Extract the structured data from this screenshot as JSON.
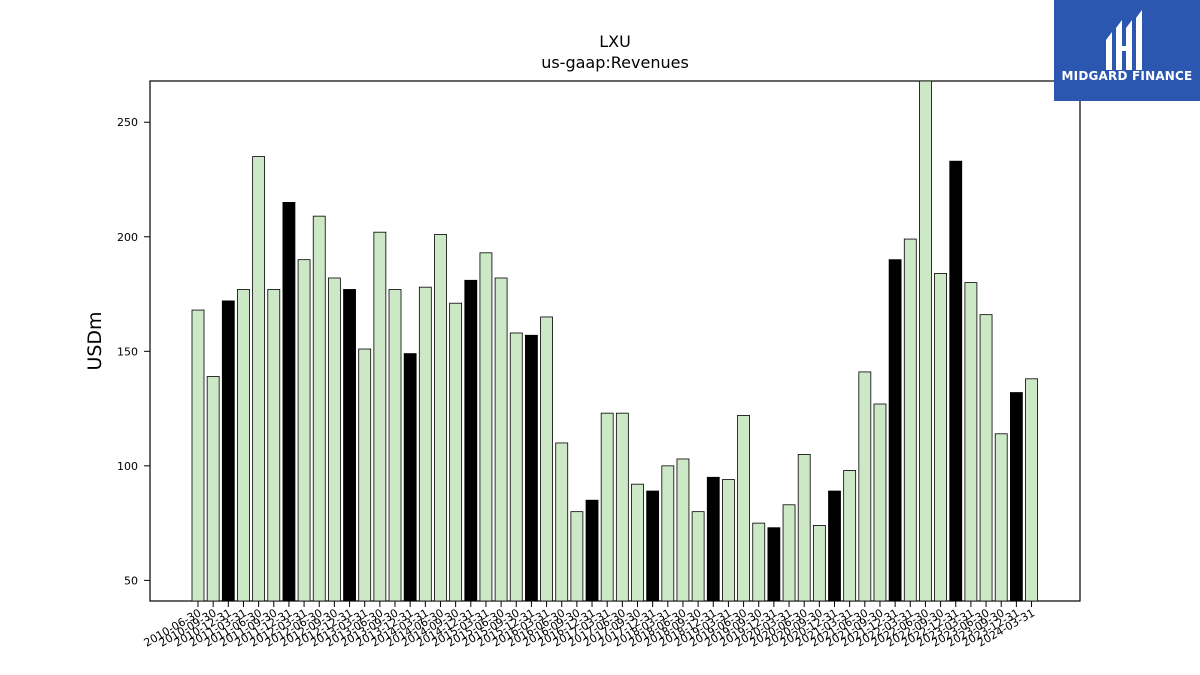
{
  "chart_data": {
    "type": "bar",
    "title": "LXU",
    "subtitle": "us-gaap:Revenues",
    "xlabel": "",
    "ylabel": "USDm",
    "ylim": [
      41,
      268
    ],
    "yticks": [
      50,
      100,
      150,
      200,
      250
    ],
    "grid": false,
    "colors": {
      "default": "#cde8c6",
      "highlight": "#000000",
      "edge": "#000000"
    },
    "categories": [
      "2010-06-30",
      "2010-09-30",
      "2010-12-31",
      "2011-03-31",
      "2011-06-30",
      "2011-09-30",
      "2011-12-31",
      "2012-03-31",
      "2012-06-30",
      "2012-09-30",
      "2012-12-31",
      "2013-03-31",
      "2013-06-30",
      "2013-09-30",
      "2013-12-31",
      "2014-03-31",
      "2014-06-30",
      "2014-09-30",
      "2014-12-31",
      "2015-03-31",
      "2015-06-30",
      "2015-09-30",
      "2015-12-31",
      "2016-03-31",
      "2016-06-30",
      "2016-09-30",
      "2016-12-31",
      "2017-03-31",
      "2017-06-30",
      "2017-09-30",
      "2017-12-31",
      "2018-03-31",
      "2018-06-30",
      "2018-09-30",
      "2018-12-31",
      "2019-03-31",
      "2019-06-30",
      "2019-09-30",
      "2019-12-31",
      "2020-03-31",
      "2020-06-30",
      "2020-09-30",
      "2020-12-31",
      "2021-03-31",
      "2021-06-30",
      "2021-09-30",
      "2021-12-31",
      "2022-03-31",
      "2022-06-30",
      "2022-09-30",
      "2022-12-31",
      "2023-03-31",
      "2023-06-30",
      "2023-09-30",
      "2023-12-31",
      "2024-03-31"
    ],
    "values": [
      168,
      139,
      172,
      177,
      235,
      177,
      215,
      190,
      209,
      182,
      177,
      151,
      202,
      177,
      149,
      178,
      201,
      171,
      181,
      193,
      182,
      158,
      157,
      165,
      110,
      80,
      85,
      123,
      123,
      92,
      89,
      100,
      103,
      80,
      95,
      94,
      122,
      75,
      73,
      83,
      105,
      74,
      89,
      98,
      141,
      127,
      190,
      199,
      268,
      184,
      233,
      180,
      166,
      114,
      132,
      138
    ],
    "highlight": [
      false,
      false,
      true,
      false,
      false,
      false,
      true,
      false,
      false,
      false,
      true,
      false,
      false,
      false,
      true,
      false,
      false,
      false,
      true,
      false,
      false,
      false,
      true,
      false,
      false,
      false,
      true,
      false,
      false,
      false,
      true,
      false,
      false,
      false,
      true,
      false,
      false,
      false,
      true,
      false,
      false,
      false,
      true,
      false,
      false,
      false,
      true,
      false,
      false,
      false,
      true,
      false,
      false,
      false,
      true,
      false
    ]
  },
  "logo": {
    "text": "MIDGARD FINANCE"
  }
}
